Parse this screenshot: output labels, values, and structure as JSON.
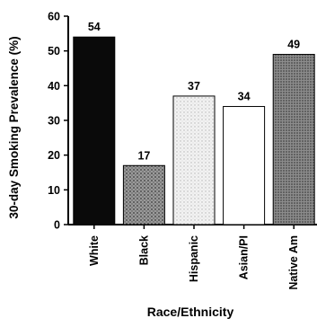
{
  "chart_data": {
    "type": "bar",
    "title": "",
    "xlabel": "Race/Ethnicity",
    "ylabel": "30-day Smoking Prevalence (%)",
    "ylim": [
      0,
      60
    ],
    "yticks": [
      "0",
      "10",
      "20",
      "30",
      "40",
      "50",
      "60"
    ],
    "categories": [
      "White",
      "Black",
      "Hispanic",
      "Asian/PI",
      "Native Am"
    ],
    "values": [
      54,
      17,
      37,
      34,
      49
    ],
    "value_labels": [
      "54",
      "17",
      "37",
      "34",
      "49"
    ],
    "bar_fills": [
      "#0a0a0a",
      "#8a8a8a",
      "#e2e2e2",
      "#ffffff",
      "#6e6e6e"
    ],
    "grid": false,
    "legend": "none"
  }
}
